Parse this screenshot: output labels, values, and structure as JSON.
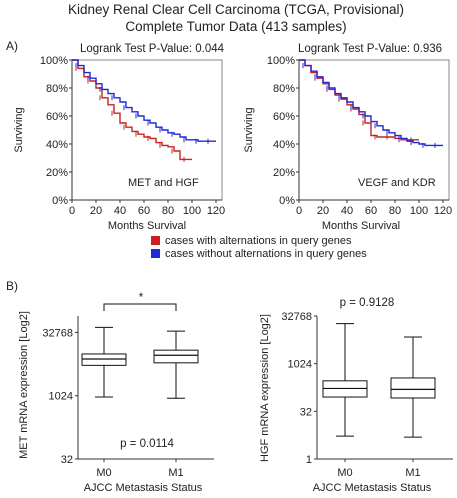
{
  "figure": {
    "title_line1": "Kidney Renal Clear Cell Carcinoma (TCGA, Provisional)",
    "title_line2": "Complete Tumor Data (413 samples)",
    "panel_a_label": "A)",
    "panel_b_label": "B)"
  },
  "legend": {
    "items": [
      {
        "label": "cases with alternations in query genes",
        "color": "#cc2020"
      },
      {
        "label": "cases without alternations in query genes",
        "color": "#1f2ad6"
      }
    ]
  },
  "chart_data": [
    {
      "type": "line",
      "title": "Logrank Test P-Value: 0.044",
      "annotation": "MET and HGF",
      "xlabel": "Months Survival",
      "ylabel": "Surviving",
      "xlim": [
        0,
        125
      ],
      "ylim": [
        0,
        100
      ],
      "x_ticks": [
        0,
        20,
        40,
        60,
        80,
        100,
        120
      ],
      "y_ticks": [
        "0%",
        "20%",
        "40%",
        "60%",
        "80%",
        "100%"
      ],
      "series": [
        {
          "color": "#cc2020",
          "x": [
            0,
            5,
            10,
            15,
            20,
            25,
            30,
            35,
            40,
            45,
            50,
            55,
            60,
            65,
            70,
            75,
            80,
            85,
            90,
            95,
            100
          ],
          "y": [
            100,
            94,
            88,
            85,
            80,
            73,
            68,
            62,
            55,
            52,
            49,
            47,
            45,
            44,
            41,
            39,
            38,
            35,
            29,
            29,
            29
          ]
        },
        {
          "color": "#1f2ad6",
          "x": [
            0,
            5,
            10,
            15,
            20,
            25,
            30,
            35,
            40,
            45,
            50,
            55,
            60,
            65,
            70,
            75,
            80,
            85,
            90,
            95,
            100,
            105,
            110,
            115,
            120
          ],
          "y": [
            100,
            96,
            91,
            87,
            83,
            79,
            76,
            73,
            70,
            66,
            63,
            60,
            57,
            55,
            52,
            50,
            48,
            47,
            45,
            43,
            43,
            42,
            42,
            42,
            42
          ]
        }
      ]
    },
    {
      "type": "line",
      "title": "Logrank Test P-Value: 0.936",
      "annotation": "VEGF and KDR",
      "xlabel": "Months Survival",
      "ylabel": "Surviving",
      "xlim": [
        0,
        125
      ],
      "ylim": [
        0,
        100
      ],
      "x_ticks": [
        0,
        20,
        40,
        60,
        80,
        100,
        120
      ],
      "y_ticks": [
        "0%",
        "20%",
        "40%",
        "60%",
        "80%",
        "100%"
      ],
      "series": [
        {
          "color": "#cc2020",
          "x": [
            0,
            5,
            10,
            15,
            20,
            25,
            30,
            35,
            40,
            45,
            50,
            55,
            60,
            65,
            70,
            75,
            80,
            85,
            90,
            95,
            100
          ],
          "y": [
            100,
            96,
            91,
            87,
            83,
            79,
            75,
            72,
            68,
            65,
            61,
            55,
            46,
            45,
            45,
            45,
            44,
            43,
            43,
            43,
            43
          ]
        },
        {
          "color": "#1f2ad6",
          "x": [
            0,
            5,
            10,
            15,
            20,
            25,
            30,
            35,
            40,
            45,
            50,
            55,
            60,
            65,
            70,
            75,
            80,
            85,
            90,
            95,
            100,
            105,
            110,
            115,
            120
          ],
          "y": [
            100,
            96,
            92,
            88,
            84,
            80,
            76,
            73,
            70,
            66,
            63,
            60,
            56,
            53,
            50,
            48,
            46,
            44,
            42,
            41,
            40,
            39,
            39,
            39,
            39
          ]
        }
      ]
    },
    {
      "type": "box",
      "ylabel": "MET mRNA expression [Log2]",
      "xlabel": "AJCC Metastasis Status",
      "y_ticks": [
        "32",
        "1024",
        "32768"
      ],
      "y_tick_log2": [
        5,
        10,
        15
      ],
      "ylim_log2": [
        5,
        16.3
      ],
      "categories": [
        "M0",
        "M1"
      ],
      "boxes": [
        {
          "whisker_low": 9.9,
          "q1": 12.4,
          "median": 12.9,
          "q3": 13.3,
          "whisker_high": 15.4
        },
        {
          "whisker_low": 9.8,
          "q1": 12.6,
          "median": 13.2,
          "q3": 13.6,
          "whisker_high": 15.1
        }
      ],
      "annotation": "p = 0.0114",
      "significance": "*"
    },
    {
      "type": "box",
      "ylabel": "HGF mRNA expression [Log2]",
      "xlabel": "AJCC Metastasis Status",
      "y_ticks": [
        "1",
        "32",
        "1024",
        "32768"
      ],
      "y_tick_log2": [
        0,
        5,
        10,
        15
      ],
      "ylim_log2": [
        0,
        15
      ],
      "categories": [
        "M0",
        "M1"
      ],
      "boxes": [
        {
          "whisker_low": 2.4,
          "q1": 6.5,
          "median": 7.4,
          "q3": 8.2,
          "whisker_high": 14.2
        },
        {
          "whisker_low": 2.3,
          "q1": 6.4,
          "median": 7.3,
          "q3": 8.5,
          "whisker_high": 12.8
        }
      ],
      "annotation": "p = 0.9128"
    }
  ]
}
